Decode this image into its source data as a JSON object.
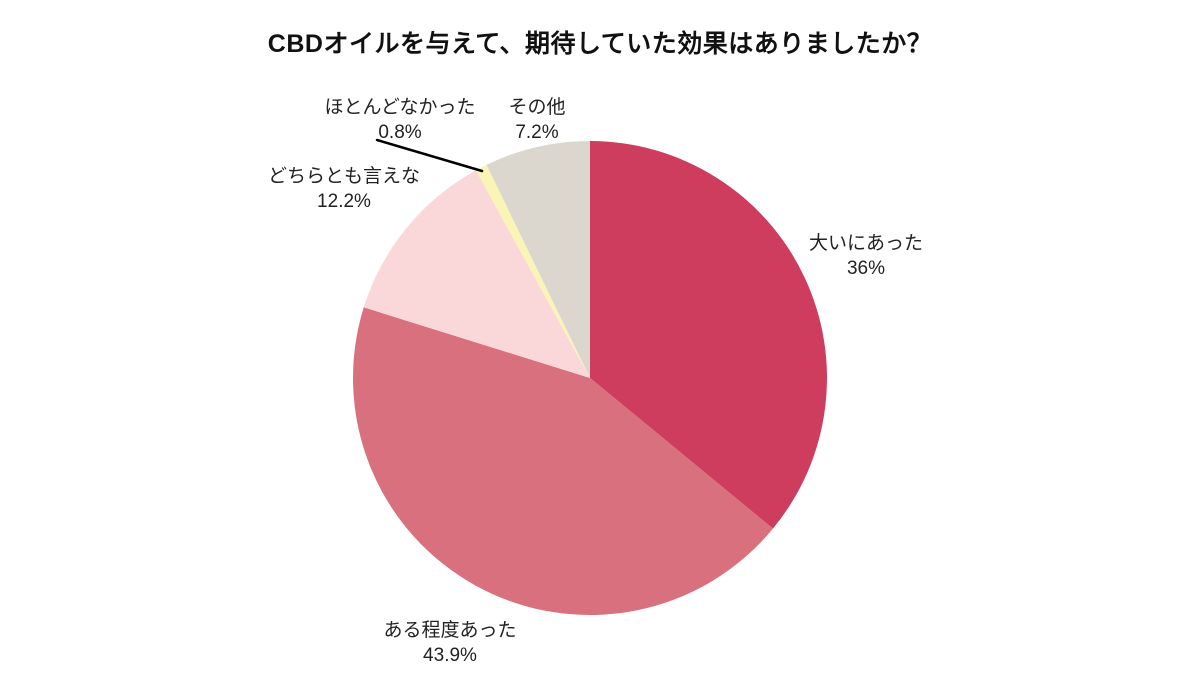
{
  "chart_data": {
    "type": "pie",
    "title": "CBDオイルを与えて、期待していた効果はありましたか？",
    "direction": "clockwise",
    "start_angle": "12-o'clock",
    "legend_position": "none (direct labels around pie, one leader line for smallest slice)",
    "background_color": "#ffffff",
    "slices": [
      {
        "label": "大いにあった",
        "value": 36,
        "display": "36%",
        "color": "#ce3d5e"
      },
      {
        "label": "ある程度あった",
        "value": 43.9,
        "display": "43.9%",
        "color": "#d8707e"
      },
      {
        "label": "どちらとも言えな",
        "value": 12.2,
        "display": "12.2%",
        "color": "#fad8da"
      },
      {
        "label": "ほとんどなかった",
        "value": 0.8,
        "display": "0.8%",
        "color": "#faf4b5"
      },
      {
        "label": "その他",
        "value": 7.2,
        "display": "7.2%",
        "color": "#dbd7ce"
      }
    ]
  }
}
